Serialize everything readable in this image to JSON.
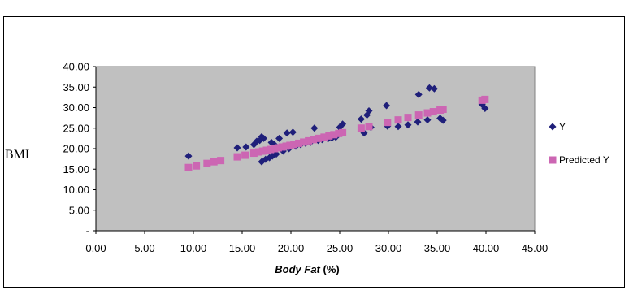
{
  "chart_data": {
    "type": "scatter",
    "title": "",
    "xlabel": "Body Fat",
    "xlabel_unit": "(%)",
    "ylabel": "BMI",
    "xlim": [
      0,
      45
    ],
    "ylim": [
      0,
      40
    ],
    "x_ticks": [
      "0.00",
      "5.00",
      "10.00",
      "15.00",
      "20.00",
      "25.00",
      "30.00",
      "35.00",
      "40.00",
      "45.00"
    ],
    "y_ticks": [
      "-",
      "5.00",
      "10.00",
      "15.00",
      "20.00",
      "25.00",
      "30.00",
      "35.00",
      "40.00"
    ],
    "plot_background": "#c0c0c0",
    "grid": false,
    "legend_position": "right",
    "series": [
      {
        "name": "Y",
        "marker": "diamond",
        "color": "#1f1f7a",
        "points": [
          [
            9.5,
            18.2
          ],
          [
            14.5,
            20.2
          ],
          [
            15.4,
            20.4
          ],
          [
            16.2,
            21.0
          ],
          [
            16.5,
            21.8
          ],
          [
            16.8,
            22.0
          ],
          [
            17.0,
            22.9
          ],
          [
            17.2,
            22.5
          ],
          [
            17.0,
            16.8
          ],
          [
            17.4,
            17.4
          ],
          [
            17.8,
            17.8
          ],
          [
            18.1,
            18.2
          ],
          [
            18.5,
            18.7
          ],
          [
            18.0,
            21.5
          ],
          [
            18.3,
            21.0
          ],
          [
            18.8,
            22.5
          ],
          [
            19.2,
            19.4
          ],
          [
            19.6,
            23.8
          ],
          [
            19.8,
            20.0
          ],
          [
            20.2,
            24.0
          ],
          [
            20.5,
            20.6
          ],
          [
            21.0,
            21.0
          ],
          [
            21.5,
            21.3
          ],
          [
            22.0,
            21.5
          ],
          [
            22.4,
            25.0
          ],
          [
            22.8,
            22.0
          ],
          [
            23.2,
            22.2
          ],
          [
            23.8,
            22.4
          ],
          [
            24.2,
            22.6
          ],
          [
            24.6,
            22.8
          ],
          [
            25.0,
            25.2
          ],
          [
            25.3,
            26.0
          ],
          [
            27.2,
            27.2
          ],
          [
            27.5,
            23.8
          ],
          [
            27.8,
            28.2
          ],
          [
            28.0,
            29.2
          ],
          [
            28.2,
            25.2
          ],
          [
            29.8,
            30.5
          ],
          [
            29.9,
            25.5
          ],
          [
            31.0,
            25.4
          ],
          [
            32.0,
            25.8
          ],
          [
            33.0,
            26.5
          ],
          [
            33.1,
            33.2
          ],
          [
            34.0,
            27.0
          ],
          [
            34.2,
            34.8
          ],
          [
            34.7,
            34.6
          ],
          [
            35.3,
            27.4
          ],
          [
            35.6,
            26.9
          ],
          [
            39.6,
            30.8
          ],
          [
            39.9,
            29.8
          ]
        ]
      },
      {
        "name": "Predicted Y",
        "marker": "square",
        "color": "#cc66b3",
        "points": [
          [
            9.5,
            15.4
          ],
          [
            10.3,
            15.8
          ],
          [
            11.4,
            16.4
          ],
          [
            12.1,
            16.8
          ],
          [
            12.8,
            17.1
          ],
          [
            14.5,
            18.0
          ],
          [
            15.3,
            18.4
          ],
          [
            16.2,
            18.9
          ],
          [
            16.7,
            19.2
          ],
          [
            17.1,
            19.4
          ],
          [
            17.5,
            19.6
          ],
          [
            17.9,
            19.8
          ],
          [
            18.3,
            20.0
          ],
          [
            18.7,
            20.2
          ],
          [
            19.1,
            20.4
          ],
          [
            19.5,
            20.6
          ],
          [
            19.9,
            20.8
          ],
          [
            20.3,
            21.0
          ],
          [
            20.8,
            21.3
          ],
          [
            21.3,
            21.6
          ],
          [
            21.8,
            21.9
          ],
          [
            22.3,
            22.2
          ],
          [
            22.8,
            22.5
          ],
          [
            23.4,
            22.8
          ],
          [
            23.9,
            23.1
          ],
          [
            24.4,
            23.4
          ],
          [
            24.9,
            23.7
          ],
          [
            25.3,
            23.9
          ],
          [
            27.2,
            25.0
          ],
          [
            28.0,
            25.4
          ],
          [
            29.9,
            26.4
          ],
          [
            31.0,
            27.0
          ],
          [
            32.0,
            27.6
          ],
          [
            33.1,
            28.2
          ],
          [
            34.0,
            28.7
          ],
          [
            34.6,
            29.0
          ],
          [
            35.3,
            29.4
          ],
          [
            35.6,
            29.6
          ],
          [
            39.6,
            31.8
          ],
          [
            39.9,
            32.0
          ]
        ]
      }
    ]
  }
}
